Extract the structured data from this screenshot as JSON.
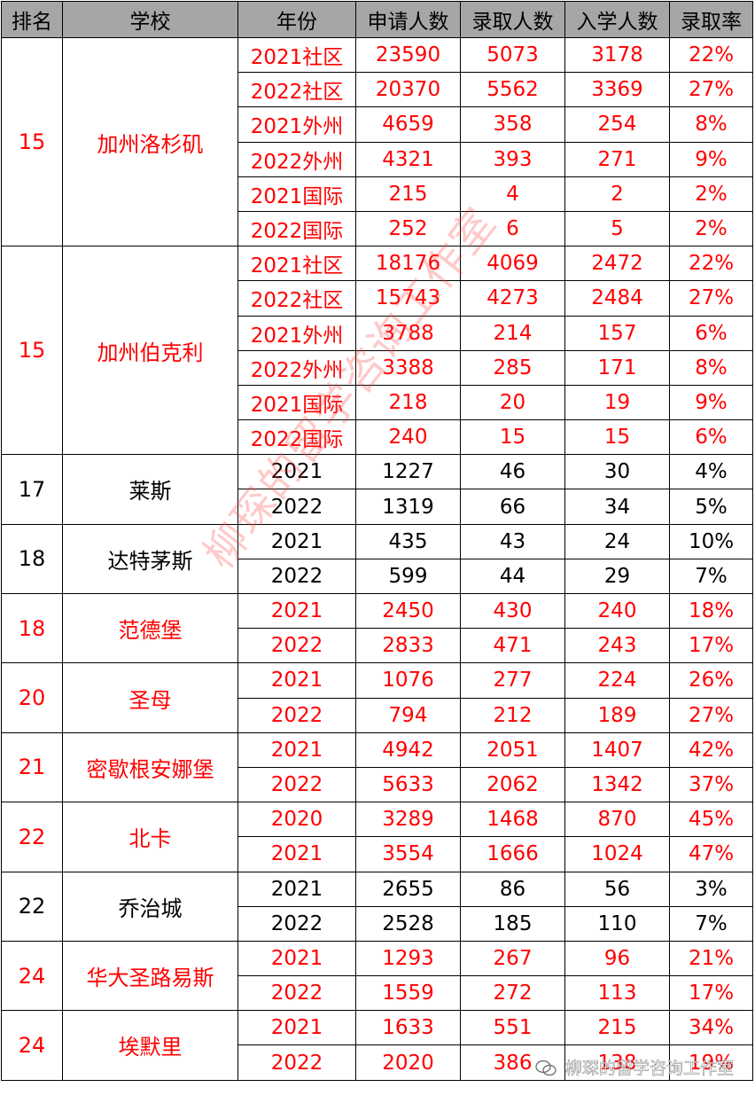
{
  "headers": [
    "排名",
    "学校",
    "年份",
    "申请人数",
    "录取人数",
    "入学人数",
    "录取率"
  ],
  "colors": {
    "header_bg": "#a6a6a6",
    "highlight": "#ff0000",
    "normal": "#000000"
  },
  "watermark": "柳琛的留学咨询工作室",
  "footer_watermark": "柳琛的留学咨询工作室",
  "groups": [
    {
      "rank": "15",
      "school": "加州洛杉矶",
      "highlight": true,
      "rows": [
        [
          "2021社区",
          "23590",
          "5073",
          "3178",
          "22%"
        ],
        [
          "2022社区",
          "20370",
          "5562",
          "3369",
          "27%"
        ],
        [
          "2021外州",
          "4659",
          "358",
          "254",
          "8%"
        ],
        [
          "2022外州",
          "4321",
          "393",
          "271",
          "9%"
        ],
        [
          "2021国际",
          "215",
          "4",
          "2",
          "2%"
        ],
        [
          "2022国际",
          "252",
          "6",
          "5",
          "2%"
        ]
      ]
    },
    {
      "rank": "15",
      "school": "加州伯克利",
      "highlight": true,
      "rows": [
        [
          "2021社区",
          "18176",
          "4069",
          "2472",
          "22%"
        ],
        [
          "2022社区",
          "15743",
          "4273",
          "2484",
          "27%"
        ],
        [
          "2021外州",
          "3788",
          "214",
          "157",
          "6%"
        ],
        [
          "2022外州",
          "3388",
          "285",
          "171",
          "8%"
        ],
        [
          "2021国际",
          "218",
          "20",
          "19",
          "9%"
        ],
        [
          "2022国际",
          "240",
          "15",
          "15",
          "6%"
        ]
      ]
    },
    {
      "rank": "17",
      "school": "莱斯",
      "highlight": false,
      "rows": [
        [
          "2021",
          "1227",
          "46",
          "30",
          "4%"
        ],
        [
          "2022",
          "1319",
          "66",
          "34",
          "5%"
        ]
      ]
    },
    {
      "rank": "18",
      "school": "达特茅斯",
      "highlight": false,
      "rows": [
        [
          "2021",
          "435",
          "43",
          "24",
          "10%"
        ],
        [
          "2022",
          "599",
          "44",
          "29",
          "7%"
        ]
      ]
    },
    {
      "rank": "18",
      "school": "范德堡",
      "highlight": true,
      "rows": [
        [
          "2021",
          "2450",
          "430",
          "240",
          "18%"
        ],
        [
          "2022",
          "2833",
          "471",
          "243",
          "17%"
        ]
      ]
    },
    {
      "rank": "20",
      "school": "圣母",
      "highlight": true,
      "rows": [
        [
          "2021",
          "1076",
          "277",
          "224",
          "26%"
        ],
        [
          "2022",
          "794",
          "212",
          "189",
          "27%"
        ]
      ]
    },
    {
      "rank": "21",
      "school": "密歇根安娜堡",
      "highlight": true,
      "rows": [
        [
          "2021",
          "4942",
          "2051",
          "1407",
          "42%"
        ],
        [
          "2022",
          "5633",
          "2062",
          "1342",
          "37%"
        ]
      ]
    },
    {
      "rank": "22",
      "school": "北卡",
      "highlight": true,
      "rows": [
        [
          "2020",
          "3289",
          "1468",
          "870",
          "45%"
        ],
        [
          "2021",
          "3554",
          "1666",
          "1024",
          "47%"
        ]
      ]
    },
    {
      "rank": "22",
      "school": "乔治城",
      "highlight": false,
      "rows": [
        [
          "2021",
          "2655",
          "86",
          "56",
          "3%"
        ],
        [
          "2022",
          "2528",
          "185",
          "110",
          "7%"
        ]
      ]
    },
    {
      "rank": "24",
      "school": "华大圣路易斯",
      "highlight": true,
      "rows": [
        [
          "2021",
          "1293",
          "267",
          "96",
          "21%"
        ],
        [
          "2022",
          "1559",
          "272",
          "113",
          "17%"
        ]
      ]
    },
    {
      "rank": "24",
      "school": "埃默里",
      "highlight": true,
      "rows": [
        [
          "2021",
          "1633",
          "551",
          "215",
          "34%"
        ],
        [
          "2022",
          "2020",
          "386",
          "138",
          "19%"
        ]
      ]
    }
  ]
}
